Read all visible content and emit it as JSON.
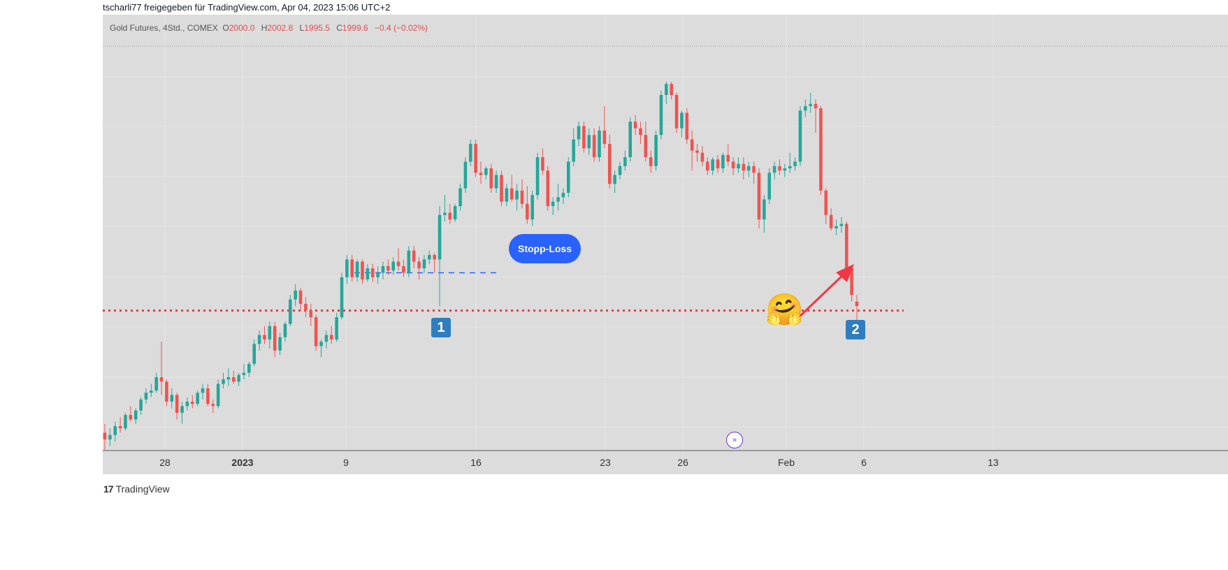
{
  "header": {
    "text": "tscharli77 freigegeben für TradingView.com, Apr 04, 2023 15:06 UTC+2"
  },
  "legend": {
    "symbol": "Gold Futures, 4Std., COMEX",
    "o_label": "O",
    "o": "2000.0",
    "h_label": "H",
    "h": "2002.8",
    "l_label": "L",
    "l": "1995.5",
    "c_label": "C",
    "c": "1999.6",
    "change": "−0.4 (−0.02%)"
  },
  "annotations": {
    "stopp_loss": "Stopp-Loss",
    "badge1": "1",
    "badge2": "2",
    "emoji": "🤗"
  },
  "brand": {
    "logo": "17",
    "name": "TradingView"
  },
  "colors": {
    "up": "#26a69a",
    "down": "#ef5350",
    "stop_line": "#f23645",
    "level_line": "#2962ff",
    "background": "#dcdcdc"
  },
  "chart_data": {
    "type": "candlestick",
    "title": "",
    "x_tick_labels": [
      {
        "label": "28",
        "bold": false
      },
      {
        "label": "2023",
        "bold": true
      },
      {
        "label": "9",
        "bold": false
      },
      {
        "label": "16",
        "bold": false
      },
      {
        "label": "23",
        "bold": false
      },
      {
        "label": "26",
        "bold": false
      },
      {
        "label": "Feb",
        "bold": false
      },
      {
        "label": "6",
        "bold": false
      },
      {
        "label": "13",
        "bold": false
      }
    ],
    "y_range": [
      1780,
      1962
    ],
    "grid": true,
    "stop_loss_level": 1843,
    "breakout_level": 1860,
    "candles": [
      [
        1788,
        1792,
        1780,
        1785
      ],
      [
        1785,
        1790,
        1782,
        1787
      ],
      [
        1787,
        1793,
        1784,
        1791
      ],
      [
        1791,
        1795,
        1788,
        1790
      ],
      [
        1790,
        1797,
        1789,
        1796
      ],
      [
        1796,
        1800,
        1793,
        1794
      ],
      [
        1794,
        1799,
        1792,
        1798
      ],
      [
        1798,
        1804,
        1796,
        1803
      ],
      [
        1803,
        1808,
        1801,
        1806
      ],
      [
        1806,
        1810,
        1804,
        1807
      ],
      [
        1807,
        1815,
        1806,
        1813
      ],
      [
        1813,
        1829,
        1805,
        1811
      ],
      [
        1811,
        1812,
        1800,
        1802
      ],
      [
        1802,
        1808,
        1799,
        1805
      ],
      [
        1805,
        1806,
        1794,
        1797
      ],
      [
        1797,
        1802,
        1792,
        1800
      ],
      [
        1800,
        1804,
        1798,
        1802
      ],
      [
        1802,
        1805,
        1799,
        1801
      ],
      [
        1801,
        1807,
        1800,
        1806
      ],
      [
        1806,
        1810,
        1803,
        1808
      ],
      [
        1808,
        1810,
        1800,
        1801
      ],
      [
        1801,
        1803,
        1797,
        1800
      ],
      [
        1800,
        1812,
        1799,
        1810
      ],
      [
        1810,
        1815,
        1808,
        1812
      ],
      [
        1812,
        1817,
        1809,
        1813
      ],
      [
        1813,
        1816,
        1810,
        1811
      ],
      [
        1811,
        1815,
        1809,
        1814
      ],
      [
        1814,
        1819,
        1812,
        1815
      ],
      [
        1815,
        1820,
        1813,
        1819
      ],
      [
        1819,
        1830,
        1818,
        1828
      ],
      [
        1828,
        1834,
        1825,
        1832
      ],
      [
        1832,
        1836,
        1828,
        1830
      ],
      [
        1830,
        1838,
        1826,
        1836
      ],
      [
        1836,
        1838,
        1822,
        1825
      ],
      [
        1825,
        1833,
        1823,
        1831
      ],
      [
        1831,
        1838,
        1829,
        1837
      ],
      [
        1837,
        1850,
        1836,
        1848
      ],
      [
        1848,
        1855,
        1845,
        1852
      ],
      [
        1852,
        1853,
        1843,
        1846
      ],
      [
        1846,
        1849,
        1840,
        1843
      ],
      [
        1843,
        1846,
        1836,
        1840
      ],
      [
        1840,
        1841,
        1825,
        1827
      ],
      [
        1827,
        1830,
        1822,
        1829
      ],
      [
        1829,
        1834,
        1826,
        1832
      ],
      [
        1832,
        1836,
        1828,
        1830
      ],
      [
        1830,
        1842,
        1829,
        1840
      ],
      [
        1840,
        1860,
        1839,
        1858
      ],
      [
        1858,
        1868,
        1855,
        1866
      ],
      [
        1866,
        1868,
        1856,
        1858
      ],
      [
        1858,
        1866,
        1856,
        1865
      ],
      [
        1865,
        1866,
        1855,
        1857
      ],
      [
        1857,
        1864,
        1856,
        1862
      ],
      [
        1862,
        1864,
        1856,
        1858
      ],
      [
        1858,
        1863,
        1855,
        1860
      ],
      [
        1860,
        1865,
        1857,
        1863
      ],
      [
        1863,
        1866,
        1859,
        1861
      ],
      [
        1861,
        1867,
        1859,
        1865
      ],
      [
        1865,
        1871,
        1861,
        1863
      ],
      [
        1863,
        1866,
        1858,
        1860
      ],
      [
        1860,
        1872,
        1858,
        1870
      ],
      [
        1870,
        1872,
        1862,
        1865
      ],
      [
        1865,
        1867,
        1857,
        1862
      ],
      [
        1862,
        1868,
        1860,
        1866
      ],
      [
        1866,
        1870,
        1864,
        1868
      ],
      [
        1868,
        1869,
        1860,
        1866
      ],
      [
        1866,
        1890,
        1845,
        1886
      ],
      [
        1886,
        1895,
        1883,
        1887
      ],
      [
        1887,
        1891,
        1882,
        1884
      ],
      [
        1884,
        1891,
        1883,
        1890
      ],
      [
        1890,
        1900,
        1888,
        1898
      ],
      [
        1898,
        1912,
        1896,
        1910
      ],
      [
        1910,
        1920,
        1908,
        1918
      ],
      [
        1918,
        1920,
        1903,
        1905
      ],
      [
        1905,
        1910,
        1900,
        1904
      ],
      [
        1904,
        1908,
        1902,
        1907
      ],
      [
        1907,
        1909,
        1896,
        1898
      ],
      [
        1898,
        1906,
        1896,
        1904
      ],
      [
        1904,
        1906,
        1890,
        1892
      ],
      [
        1892,
        1900,
        1890,
        1898
      ],
      [
        1898,
        1904,
        1892,
        1893
      ],
      [
        1893,
        1900,
        1888,
        1897
      ],
      [
        1897,
        1902,
        1889,
        1891
      ],
      [
        1891,
        1899,
        1882,
        1884
      ],
      [
        1884,
        1897,
        1881,
        1895
      ],
      [
        1895,
        1914,
        1893,
        1912
      ],
      [
        1912,
        1916,
        1904,
        1906
      ],
      [
        1906,
        1908,
        1888,
        1890
      ],
      [
        1890,
        1894,
        1886,
        1892
      ],
      [
        1892,
        1900,
        1888,
        1894
      ],
      [
        1894,
        1898,
        1891,
        1896
      ],
      [
        1896,
        1912,
        1894,
        1910
      ],
      [
        1910,
        1925,
        1908,
        1920
      ],
      [
        1920,
        1928,
        1917,
        1926
      ],
      [
        1926,
        1928,
        1914,
        1916
      ],
      [
        1916,
        1925,
        1913,
        1922
      ],
      [
        1922,
        1925,
        1910,
        1912
      ],
      [
        1912,
        1926,
        1910,
        1924
      ],
      [
        1924,
        1935,
        1916,
        1918
      ],
      [
        1918,
        1922,
        1898,
        1900
      ],
      [
        1900,
        1906,
        1896,
        1904
      ],
      [
        1904,
        1910,
        1902,
        1908
      ],
      [
        1908,
        1915,
        1906,
        1912
      ],
      [
        1912,
        1930,
        1910,
        1928
      ],
      [
        1928,
        1931,
        1922,
        1925
      ],
      [
        1925,
        1928,
        1918,
        1922
      ],
      [
        1922,
        1928,
        1910,
        1912
      ],
      [
        1912,
        1915,
        1905,
        1908
      ],
      [
        1908,
        1924,
        1906,
        1922
      ],
      [
        1922,
        1942,
        1920,
        1940
      ],
      [
        1940,
        1946,
        1936,
        1945
      ],
      [
        1945,
        1946,
        1938,
        1940
      ],
      [
        1940,
        1941,
        1923,
        1925
      ],
      [
        1925,
        1933,
        1921,
        1932
      ],
      [
        1932,
        1934,
        1918,
        1920
      ],
      [
        1920,
        1924,
        1906,
        1915
      ],
      [
        1915,
        1918,
        1910,
        1914
      ],
      [
        1914,
        1917,
        1908,
        1910
      ],
      [
        1910,
        1912,
        1904,
        1906
      ],
      [
        1906,
        1912,
        1904,
        1911
      ],
      [
        1911,
        1913,
        1905,
        1907
      ],
      [
        1907,
        1914,
        1905,
        1913
      ],
      [
        1913,
        1918,
        1908,
        1910
      ],
      [
        1910,
        1912,
        1904,
        1907
      ],
      [
        1907,
        1912,
        1905,
        1909
      ],
      [
        1909,
        1912,
        1902,
        1906
      ],
      [
        1906,
        1910,
        1903,
        1908
      ],
      [
        1908,
        1910,
        1900,
        1905
      ],
      [
        1905,
        1907,
        1880,
        1884
      ],
      [
        1884,
        1895,
        1878,
        1893
      ],
      [
        1893,
        1907,
        1891,
        1905
      ],
      [
        1905,
        1910,
        1902,
        1908
      ],
      [
        1908,
        1911,
        1904,
        1906
      ],
      [
        1906,
        1909,
        1903,
        1907
      ],
      [
        1907,
        1914,
        1905,
        1908
      ],
      [
        1908,
        1912,
        1906,
        1910
      ],
      [
        1910,
        1935,
        1908,
        1933
      ],
      [
        1933,
        1938,
        1930,
        1935
      ],
      [
        1935,
        1941,
        1932,
        1936
      ],
      [
        1936,
        1938,
        1923,
        1934
      ],
      [
        1934,
        1935,
        1895,
        1897
      ],
      [
        1897,
        1898,
        1882,
        1886
      ],
      [
        1886,
        1889,
        1879,
        1880
      ],
      [
        1880,
        1884,
        1877,
        1881
      ],
      [
        1881,
        1885,
        1878,
        1882
      ],
      [
        1882,
        1883,
        1860,
        1862
      ],
      [
        1862,
        1863,
        1847,
        1850
      ],
      [
        1847,
        1850,
        1838,
        1845
      ]
    ]
  }
}
